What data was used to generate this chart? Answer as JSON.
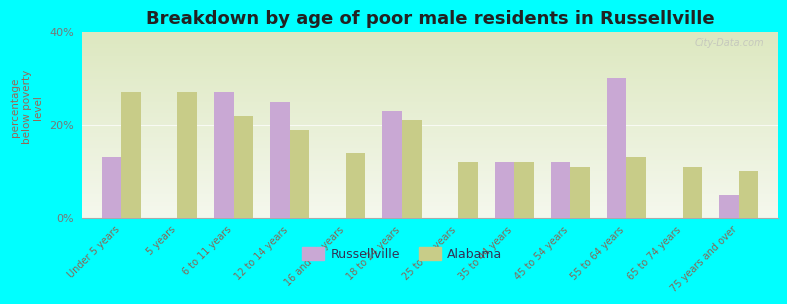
{
  "title": "Breakdown by age of poor male residents in Russellville",
  "categories": [
    "Under 5 years",
    "5 years",
    "6 to 11 years",
    "12 to 14 years",
    "16 and 17 years",
    "18 to 24 years",
    "25 to 34 years",
    "35 to 44 years",
    "45 to 54 years",
    "55 to 64 years",
    "65 to 74 years",
    "75 years and over"
  ],
  "russellville": [
    13,
    0,
    27,
    25,
    0,
    23,
    0,
    12,
    12,
    30,
    0,
    5
  ],
  "alabama": [
    27,
    27,
    22,
    19,
    14,
    21,
    12,
    12,
    11,
    13,
    11,
    10
  ],
  "russellville_color": "#c9a8d4",
  "alabama_color": "#c8cc88",
  "background_color": "#00ffff",
  "plot_bg_top": "#dde8c0",
  "plot_bg_bottom": "#f5f8ee",
  "ylabel": "percentage\nbelow poverty\nlevel",
  "ylim": [
    0,
    40
  ],
  "yticks": [
    0,
    20,
    40
  ],
  "ytick_labels": [
    "0%",
    "20%",
    "40%"
  ],
  "title_fontsize": 13,
  "legend_labels": [
    "Russellville",
    "Alabama"
  ],
  "watermark": "City-Data.com",
  "bar_width": 0.35
}
